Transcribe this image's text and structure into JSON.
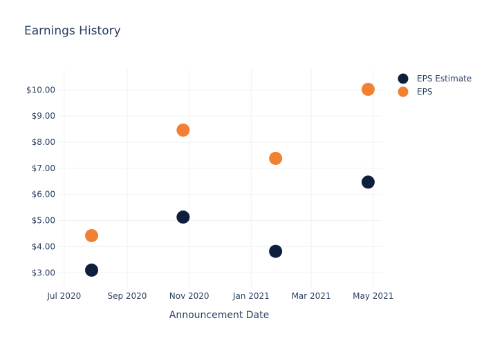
{
  "chart_data": {
    "type": "scatter",
    "title": "Earnings History",
    "xlabel": "Announcement Date",
    "ylabel": "",
    "x_ticks": [
      "Jul 2020",
      "Sep 2020",
      "Nov 2020",
      "Jan 2021",
      "Mar 2021",
      "May 2021"
    ],
    "y_ticks": [
      "$3.00",
      "$4.00",
      "$5.00",
      "$6.00",
      "$7.00",
      "$8.00",
      "$9.00",
      "$10.00"
    ],
    "xlim": [
      "2020-06-25",
      "2021-05-10"
    ],
    "ylim": [
      2.4,
      10.8
    ],
    "grid": true,
    "legend_position": "top-right",
    "series": [
      {
        "name": "EPS Estimate",
        "color": "#0d1f3d",
        "points": [
          {
            "x": "2020-07-28",
            "y": 3.1
          },
          {
            "x": "2020-10-26",
            "y": 5.13
          },
          {
            "x": "2021-01-25",
            "y": 3.82
          },
          {
            "x": "2021-04-26",
            "y": 6.47
          }
        ]
      },
      {
        "name": "EPS",
        "color": "#f28033",
        "points": [
          {
            "x": "2020-07-28",
            "y": 4.42
          },
          {
            "x": "2020-10-26",
            "y": 8.46
          },
          {
            "x": "2021-01-25",
            "y": 7.38
          },
          {
            "x": "2021-04-26",
            "y": 10.02
          }
        ]
      }
    ]
  }
}
